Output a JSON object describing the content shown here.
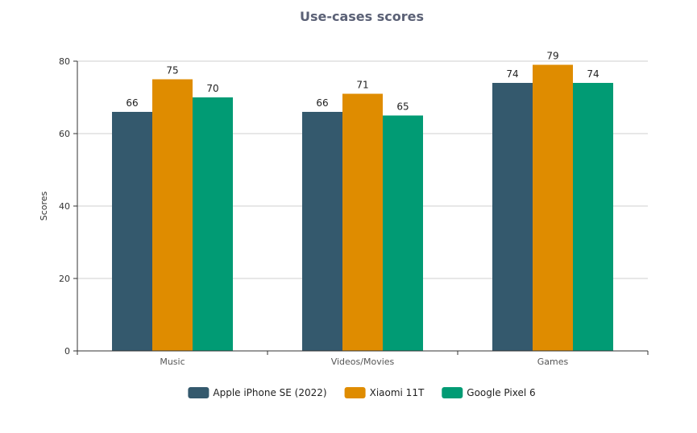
{
  "chart_data": {
    "type": "bar",
    "title": "Use-cases scores",
    "xlabel": "",
    "ylabel": "Scores",
    "categories": [
      "Music",
      "Videos/Movies",
      "Games"
    ],
    "series": [
      {
        "name": "Apple iPhone SE (2022)",
        "color": "#34596d",
        "values": [
          66,
          66,
          74
        ]
      },
      {
        "name": "Xiaomi 11T",
        "color": "#df8c00",
        "values": [
          75,
          71,
          79
        ]
      },
      {
        "name": "Google Pixel 6",
        "color": "#019b74",
        "values": [
          70,
          65,
          74
        ]
      }
    ],
    "ylim": [
      0,
      80
    ],
    "yticks": [
      0,
      20,
      40,
      60,
      80
    ],
    "grid": true,
    "legend": "bottom"
  }
}
